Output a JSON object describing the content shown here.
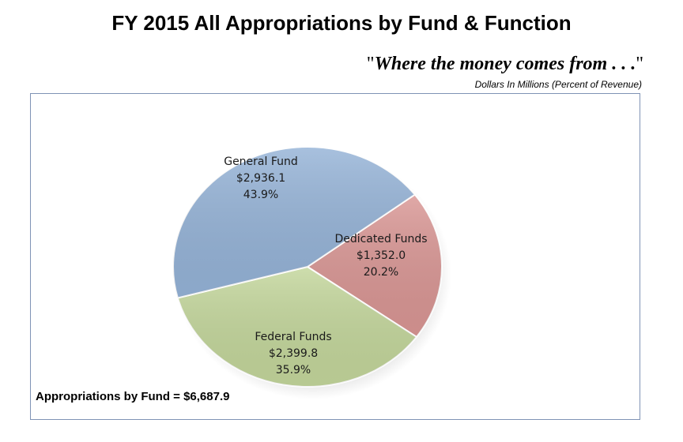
{
  "header": {
    "title": "FY 2015 All Appropriations by Fund & Function",
    "subtitle_open_quote": "\"",
    "subtitle_text": "Where the money comes from . . .",
    "subtitle_close_quote": "\"",
    "units_note": "Dollars In Millions (Percent of Revenue)"
  },
  "footer": {
    "total_label": "Appropriations by Fund = $6,687.9"
  },
  "chart_data": {
    "type": "pie",
    "title": "FY 2015 All Appropriations by Fund & Function",
    "slices": [
      {
        "name": "General Fund",
        "value": 2936.1,
        "value_label": "$2,936.1",
        "percent": 43.9,
        "percent_label": "43.9%",
        "color": "#95b3d7"
      },
      {
        "name": "Dedicated Funds",
        "value": 1352.0,
        "value_label": "$1,352.0",
        "percent": 20.2,
        "percent_label": "20.2%",
        "color": "#d99694"
      },
      {
        "name": "Federal Funds",
        "value": 2399.8,
        "value_label": "$2,399.8",
        "percent": 35.9,
        "percent_label": "35.9%",
        "color": "#c3d69b"
      }
    ],
    "total": 6687.9,
    "legend": "none"
  }
}
